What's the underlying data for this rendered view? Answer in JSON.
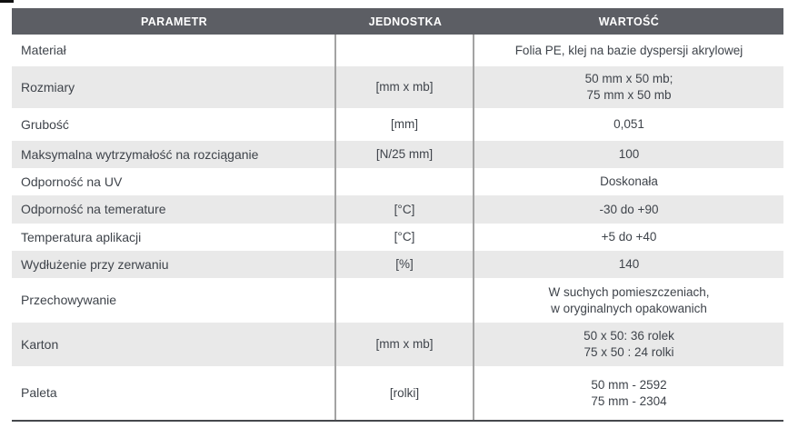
{
  "table": {
    "columns": [
      "PARAMETR",
      "JEDNOSTKA",
      "WARTOŚĆ"
    ],
    "rows": [
      {
        "parametr": "Materiał",
        "jednostka": "",
        "wartosc": [
          "Folia PE, klej na bazie dyspersji akrylowej"
        ]
      },
      {
        "parametr": "Rozmiary",
        "jednostka": "[mm x mb]",
        "wartosc": [
          "50 mm x 50 mb;",
          "75 mm x 50 mb"
        ]
      },
      {
        "parametr": "Grubość",
        "jednostka": "[mm]",
        "wartosc": [
          "0,051"
        ]
      },
      {
        "parametr": "Maksymalna wytrzymałość na rozciąganie",
        "jednostka": "[N/25 mm]",
        "wartosc": [
          "100"
        ]
      },
      {
        "parametr": "Odporność na UV",
        "jednostka": "",
        "wartosc": [
          "Doskonała"
        ]
      },
      {
        "parametr": "Odporność na temerature",
        "jednostka": "[°C]",
        "wartosc": [
          "-30 do +90"
        ]
      },
      {
        "parametr": "Temperatura aplikacji",
        "jednostka": "[°C]",
        "wartosc": [
          "+5 do +40"
        ]
      },
      {
        "parametr": "Wydłużenie przy zerwaniu",
        "jednostka": "[%]",
        "wartosc": [
          "140"
        ]
      },
      {
        "parametr": "Przechowywanie",
        "jednostka": "",
        "wartosc": [
          "W suchych pomieszczeniach,",
          "w oryginalnych opakowanich"
        ]
      },
      {
        "parametr": "Karton",
        "jednostka": "[mm x mb]",
        "wartosc": [
          "50 x 50: 36 rolek",
          "75 x 50 : 24 rolki"
        ]
      },
      {
        "parametr": "Paleta",
        "jednostka": "[rolki]",
        "wartosc": [
          "50 mm - 2592",
          "75 mm - 2304"
        ]
      }
    ],
    "colors": {
      "header_bg": "#5c5e64",
      "row_alt_bg": "#e9e9e9",
      "text": "#3f444b",
      "grid_line": "#a3a3a3",
      "bottom_line": "#46484d"
    }
  }
}
